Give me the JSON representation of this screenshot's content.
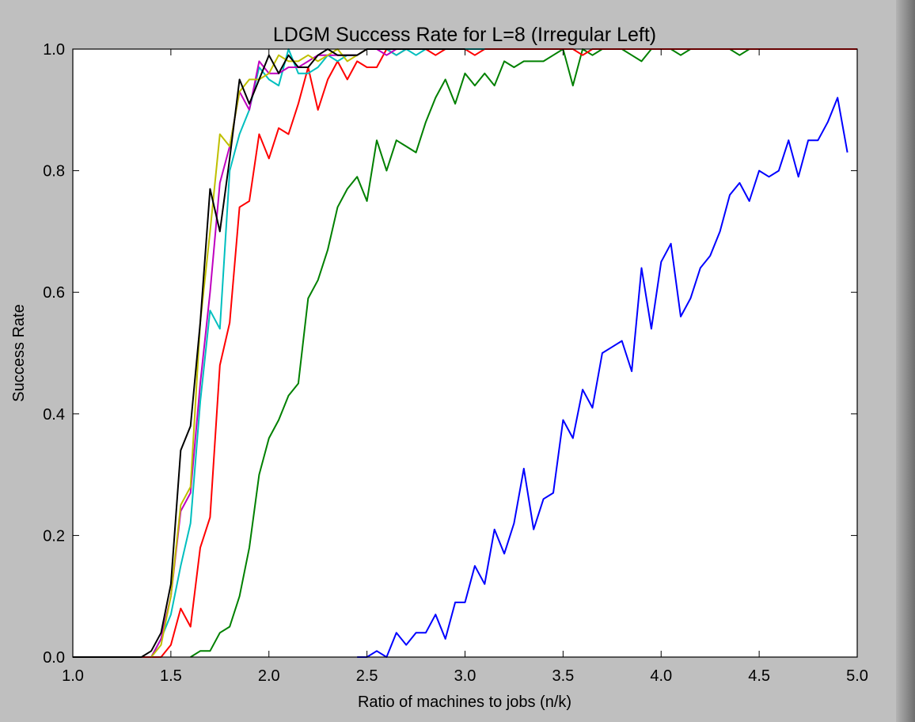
{
  "chart_data": {
    "type": "line",
    "title": "LDGM Success Rate for L=8 (Irregular Left)",
    "xlabel": "Ratio of machines to jobs (n/k)",
    "ylabel": "Success Rate",
    "xlim": [
      1.0,
      5.0
    ],
    "ylim": [
      0.0,
      1.0
    ],
    "xticks": [
      "1.0",
      "1.5",
      "2.0",
      "2.5",
      "3.0",
      "3.5",
      "4.0",
      "4.5",
      "5.0"
    ],
    "yticks": [
      "0.0",
      "0.2",
      "0.4",
      "0.6",
      "0.8",
      "1.0"
    ],
    "grid": false,
    "series": [
      {
        "color": "#0000ff",
        "x": [
          2.45,
          2.5,
          2.55,
          2.6,
          2.65,
          2.7,
          2.75,
          2.8,
          2.85,
          2.9,
          2.95,
          3.0,
          3.05,
          3.1,
          3.15,
          3.2,
          3.25,
          3.3,
          3.35,
          3.4,
          3.45,
          3.5,
          3.55,
          3.6,
          3.65,
          3.7,
          3.75,
          3.8,
          3.85,
          3.9,
          3.95,
          4.0,
          4.05,
          4.1,
          4.15,
          4.2,
          4.25,
          4.3,
          4.35,
          4.4,
          4.45,
          4.5,
          4.55,
          4.6,
          4.65,
          4.7,
          4.75,
          4.8,
          4.85,
          4.9,
          4.95
        ],
        "y": [
          0,
          0,
          0.01,
          0,
          0.04,
          0.02,
          0.04,
          0.04,
          0.07,
          0.03,
          0.09,
          0.09,
          0.15,
          0.12,
          0.21,
          0.17,
          0.22,
          0.31,
          0.21,
          0.26,
          0.27,
          0.39,
          0.36,
          0.44,
          0.41,
          0.5,
          0.51,
          0.52,
          0.47,
          0.64,
          0.54,
          0.65,
          0.68,
          0.56,
          0.59,
          0.64,
          0.66,
          0.7,
          0.76,
          0.78,
          0.75,
          0.8,
          0.79,
          0.8,
          0.85,
          0.79,
          0.85,
          0.85,
          0.88,
          0.92,
          0.83
        ]
      },
      {
        "color": "#008000",
        "x": [
          1.6,
          1.65,
          1.7,
          1.75,
          1.8,
          1.85,
          1.9,
          1.95,
          2.0,
          2.05,
          2.1,
          2.15,
          2.2,
          2.25,
          2.3,
          2.35,
          2.4,
          2.45,
          2.5,
          2.55,
          2.6,
          2.65,
          2.7,
          2.75,
          2.8,
          2.85,
          2.9,
          2.95,
          3.0,
          3.05,
          3.1,
          3.15,
          3.2,
          3.25,
          3.3,
          3.35,
          3.4,
          3.45,
          3.5,
          3.55,
          3.6,
          3.65,
          3.7,
          3.75,
          3.8,
          3.85,
          3.9,
          3.95,
          4.0,
          4.05,
          4.1,
          4.15,
          4.2,
          4.25,
          4.3,
          4.35,
          4.4,
          4.45,
          4.5,
          4.55,
          4.6,
          4.65,
          4.7,
          4.75,
          4.8,
          4.85,
          4.9,
          4.95,
          5.0
        ],
        "y": [
          0,
          0.01,
          0.01,
          0.04,
          0.05,
          0.1,
          0.18,
          0.3,
          0.36,
          0.39,
          0.43,
          0.45,
          0.59,
          0.62,
          0.67,
          0.74,
          0.77,
          0.79,
          0.75,
          0.85,
          0.8,
          0.85,
          0.84,
          0.83,
          0.88,
          0.92,
          0.95,
          0.91,
          0.96,
          0.94,
          0.96,
          0.94,
          0.98,
          0.97,
          0.98,
          0.98,
          0.98,
          0.99,
          1,
          0.94,
          1,
          0.99,
          1,
          1,
          1,
          0.99,
          0.98,
          1,
          1,
          1,
          0.99,
          1,
          1,
          1,
          1,
          1,
          0.99,
          1,
          1,
          1,
          1,
          1,
          1,
          1,
          1,
          1,
          1,
          1,
          1
        ]
      },
      {
        "color": "#ff0000",
        "x": [
          0.0,
          1.45,
          1.5,
          1.55,
          1.6,
          1.65,
          1.7,
          1.75,
          1.8,
          1.85,
          1.9,
          1.95,
          2.0,
          2.05,
          2.1,
          2.15,
          2.2,
          2.25,
          2.3,
          2.35,
          2.4,
          2.45,
          2.5,
          2.55,
          2.6,
          2.65,
          2.7,
          2.75,
          2.8,
          2.85,
          2.9,
          2.95,
          3.0,
          3.05,
          3.1,
          3.15,
          3.2,
          3.25,
          3.3,
          3.35,
          3.4,
          3.45,
          3.5,
          3.55,
          3.6,
          3.65,
          3.7,
          3.75,
          3.8,
          3.85,
          3.9,
          3.95,
          4.0,
          4.05,
          4.1,
          4.15,
          4.2,
          4.25,
          4.3,
          4.35,
          4.4,
          4.45,
          4.5,
          4.55,
          4.6,
          4.65,
          4.7,
          4.75,
          4.8,
          4.85,
          4.9,
          4.95,
          5.0
        ],
        "y": [
          0,
          0,
          0.02,
          0.08,
          0.05,
          0.18,
          0.23,
          0.48,
          0.55,
          0.74,
          0.75,
          0.86,
          0.82,
          0.87,
          0.86,
          0.91,
          0.97,
          0.9,
          0.95,
          0.98,
          0.95,
          0.98,
          0.97,
          0.97,
          1,
          0.99,
          1,
          1,
          1,
          0.99,
          1,
          1,
          1,
          0.99,
          1,
          1,
          1,
          1,
          1,
          1,
          1,
          1,
          1,
          1,
          0.99,
          1,
          1,
          1,
          1,
          1,
          1,
          1,
          1,
          1,
          1,
          1,
          1,
          1,
          1,
          1,
          1,
          1,
          1,
          1,
          1,
          1,
          1,
          1,
          1,
          1,
          1,
          1,
          1
        ]
      },
      {
        "color": "#00bfbf",
        "x": [
          1.4,
          1.45,
          1.5,
          1.55,
          1.6,
          1.65,
          1.7,
          1.75,
          1.8,
          1.85,
          1.9,
          1.95,
          2.0,
          2.05,
          2.1,
          2.15,
          2.2,
          2.25,
          2.3,
          2.35,
          2.4,
          2.45,
          2.5,
          2.55,
          2.6,
          2.65,
          2.7,
          2.75,
          2.8,
          2.85,
          2.9,
          2.95,
          3.0,
          3.05,
          3.1
        ],
        "y": [
          0,
          0.03,
          0.07,
          0.15,
          0.22,
          0.42,
          0.57,
          0.54,
          0.8,
          0.86,
          0.9,
          0.97,
          0.95,
          0.94,
          1,
          0.96,
          0.96,
          0.97,
          0.99,
          0.98,
          0.99,
          0.99,
          1,
          1,
          1,
          0.99,
          1,
          0.99,
          1,
          1,
          1,
          1,
          1,
          1,
          1
        ]
      },
      {
        "color": "#bf00bf",
        "x": [
          1.4,
          1.45,
          1.5,
          1.55,
          1.6,
          1.65,
          1.7,
          1.75,
          1.8,
          1.85,
          1.9,
          1.95,
          2.0,
          2.05,
          2.1,
          2.15,
          2.2,
          2.25,
          2.3,
          2.35,
          2.4,
          2.45,
          2.5,
          2.55,
          2.6,
          2.65,
          2.7,
          2.75,
          2.8,
          2.85,
          2.9,
          2.95,
          3.0
        ],
        "y": [
          0,
          0.03,
          0.1,
          0.24,
          0.27,
          0.45,
          0.6,
          0.78,
          0.84,
          0.93,
          0.9,
          0.98,
          0.96,
          0.96,
          0.97,
          0.97,
          0.98,
          0.99,
          0.99,
          0.99,
          0.99,
          0.99,
          1,
          1,
          0.99,
          1,
          1,
          1,
          1,
          1,
          1,
          1,
          1
        ]
      },
      {
        "color": "#bfbf00",
        "x": [
          1.4,
          1.45,
          1.5,
          1.55,
          1.6,
          1.65,
          1.7,
          1.75,
          1.8,
          1.85,
          1.9,
          1.95,
          2.0,
          2.05,
          2.1,
          2.15,
          2.2,
          2.25,
          2.3,
          2.35,
          2.4,
          2.45,
          2.5,
          2.55,
          2.6,
          2.65,
          2.7,
          2.75,
          2.8,
          2.85,
          2.9,
          2.95,
          3.0
        ],
        "y": [
          0,
          0.02,
          0.1,
          0.25,
          0.28,
          0.55,
          0.7,
          0.86,
          0.84,
          0.93,
          0.95,
          0.95,
          0.96,
          0.99,
          0.98,
          0.98,
          0.99,
          0.98,
          0.99,
          1,
          0.98,
          0.99,
          1,
          1,
          1,
          1,
          1,
          1,
          1,
          1,
          1,
          1,
          1
        ]
      },
      {
        "color": "#000000",
        "x": [
          1.0,
          1.35,
          1.4,
          1.45,
          1.5,
          1.55,
          1.6,
          1.65,
          1.7,
          1.75,
          1.8,
          1.85,
          1.9,
          1.95,
          2.0,
          2.05,
          2.1,
          2.15,
          2.2,
          2.25,
          2.3,
          2.35,
          2.4,
          2.45,
          2.5,
          2.55,
          2.6,
          2.65,
          2.7,
          2.75,
          2.8,
          2.85,
          2.9,
          2.95,
          3.0
        ],
        "y": [
          0,
          0,
          0.01,
          0.04,
          0.12,
          0.34,
          0.38,
          0.55,
          0.77,
          0.7,
          0.82,
          0.95,
          0.91,
          0.95,
          0.99,
          0.96,
          0.99,
          0.97,
          0.97,
          0.99,
          1,
          0.99,
          0.99,
          0.99,
          1,
          1,
          1,
          1,
          1,
          1,
          1,
          1,
          1,
          1,
          1
        ]
      }
    ]
  }
}
